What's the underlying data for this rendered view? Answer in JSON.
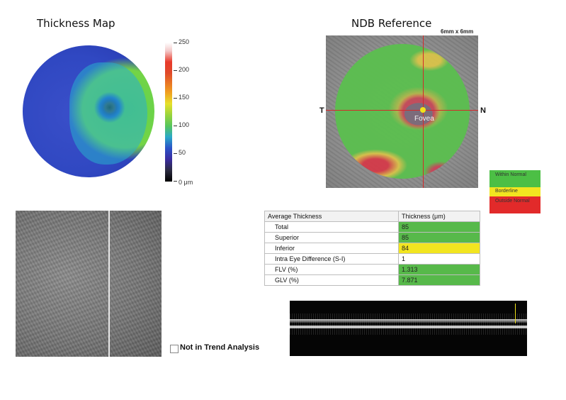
{
  "thickness_map": {
    "title": "Thickness Map",
    "scale_ticks": [
      "250",
      "200",
      "150",
      "100",
      "50",
      "0 μm"
    ]
  },
  "ndb": {
    "title": "NDB Reference",
    "size_label": "6mm x 6mm",
    "t_label": "T",
    "n_label": "N",
    "fovea_label": "Fovea"
  },
  "legend": [
    {
      "label": "Within Normal",
      "color": "#4cbf45"
    },
    {
      "label": "Borderline",
      "color": "#f2e520"
    },
    {
      "label": "Outside Normal",
      "color": "#e22a2a"
    }
  ],
  "trend": {
    "label": "Not in Trend Analysis",
    "checked": false
  },
  "table": {
    "header": [
      "Average Thickness",
      "Thickness (μm)"
    ],
    "rows": [
      {
        "label": "Total",
        "value": "85",
        "status": "green"
      },
      {
        "label": "Superior",
        "value": "85",
        "status": "green"
      },
      {
        "label": "Inferior",
        "value": "84",
        "status": "yellow"
      },
      {
        "label": "Intra Eye Difference (S-I)",
        "value": "1",
        "status": "plain"
      },
      {
        "label": "FLV (%)",
        "value": "1.313",
        "status": "green"
      },
      {
        "label": "GLV (%)",
        "value": "7.871",
        "status": "green"
      }
    ]
  }
}
